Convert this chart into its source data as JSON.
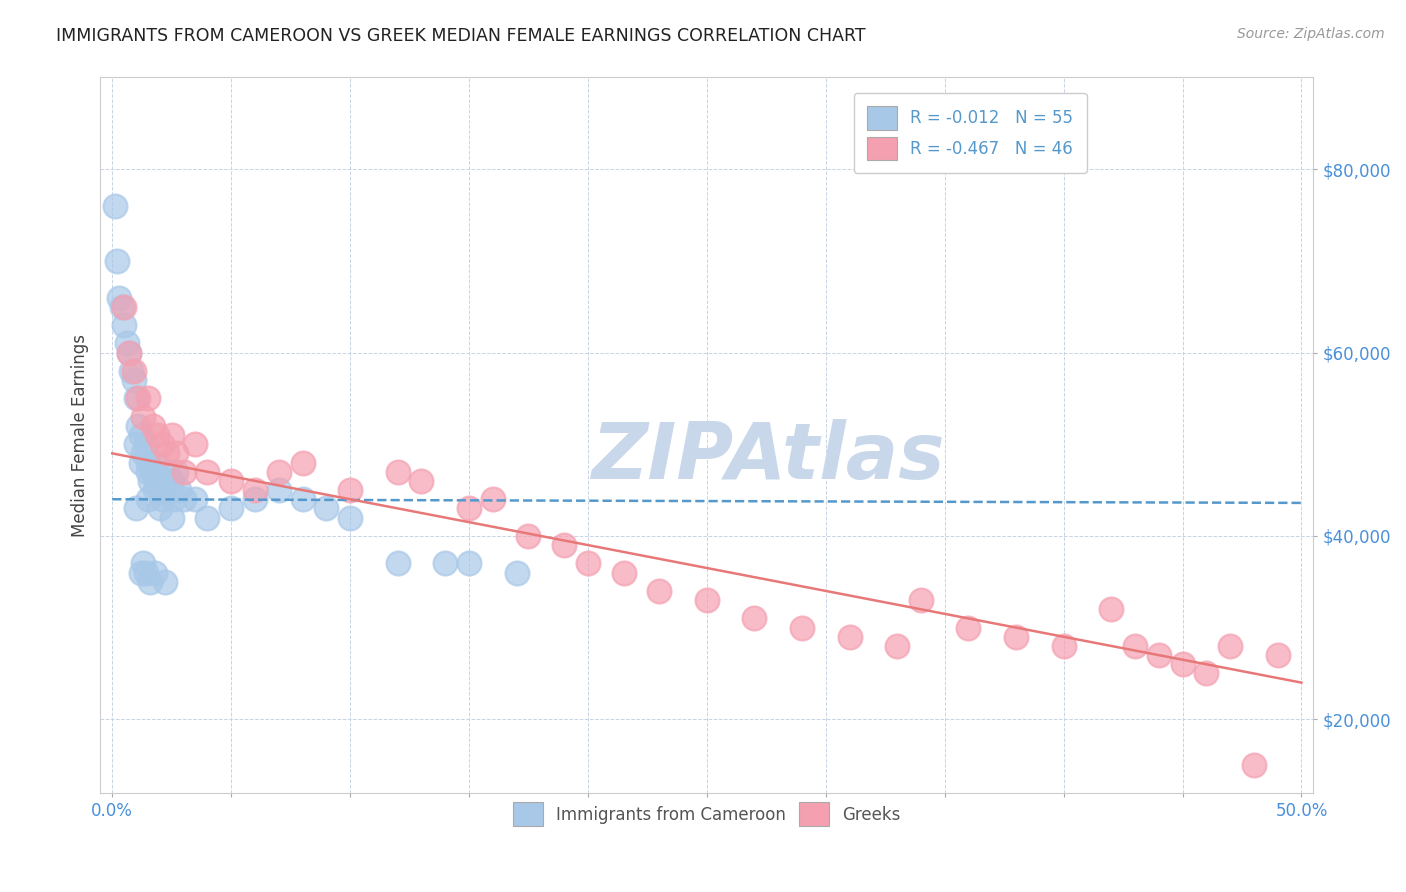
{
  "title": "IMMIGRANTS FROM CAMEROON VS GREEK MEDIAN FEMALE EARNINGS CORRELATION CHART",
  "source": "Source: ZipAtlas.com",
  "ylabel": "Median Female Earnings",
  "xlim": [
    -0.005,
    0.505
  ],
  "ylim": [
    12000,
    90000
  ],
  "xticks": [
    0.0,
    0.05,
    0.1,
    0.15,
    0.2,
    0.25,
    0.3,
    0.35,
    0.4,
    0.45,
    0.5
  ],
  "yticks": [
    20000,
    40000,
    60000,
    80000
  ],
  "ytick_labels": [
    "$20,000",
    "$40,000",
    "$60,000",
    "$80,000"
  ],
  "blue_R": -0.012,
  "blue_N": 55,
  "pink_R": -0.467,
  "pink_N": 46,
  "blue_color": "#a8c8e8",
  "pink_color": "#f4a0b0",
  "blue_line_color": "#5599cc",
  "pink_line_color": "#e87878",
  "watermark": "ZIPAtlas",
  "watermark_color": "#c8d8ea",
  "blue_scatter_x": [
    0.001,
    0.002,
    0.003,
    0.004,
    0.005,
    0.006,
    0.007,
    0.008,
    0.009,
    0.01,
    0.01,
    0.011,
    0.012,
    0.012,
    0.013,
    0.014,
    0.015,
    0.015,
    0.016,
    0.017,
    0.018,
    0.018,
    0.019,
    0.02,
    0.021,
    0.022,
    0.023,
    0.024,
    0.025,
    0.026,
    0.027,
    0.028,
    0.01,
    0.015,
    0.02,
    0.025,
    0.03,
    0.035,
    0.04,
    0.05,
    0.06,
    0.07,
    0.08,
    0.09,
    0.1,
    0.12,
    0.14,
    0.15,
    0.17,
    0.012,
    0.013,
    0.014,
    0.016,
    0.018,
    0.022
  ],
  "blue_scatter_y": [
    76000,
    70000,
    66000,
    65000,
    63000,
    61000,
    60000,
    58000,
    57000,
    55000,
    50000,
    52000,
    48000,
    51000,
    49000,
    50000,
    47000,
    48000,
    46000,
    47000,
    45000,
    48000,
    46000,
    45000,
    44000,
    46000,
    47000,
    45000,
    46000,
    44000,
    47000,
    45000,
    43000,
    44000,
    43000,
    42000,
    44000,
    44000,
    42000,
    43000,
    44000,
    45000,
    44000,
    43000,
    42000,
    37000,
    37000,
    37000,
    36000,
    36000,
    37000,
    36000,
    35000,
    36000,
    35000
  ],
  "pink_scatter_x": [
    0.005,
    0.007,
    0.009,
    0.011,
    0.013,
    0.015,
    0.017,
    0.019,
    0.021,
    0.023,
    0.025,
    0.027,
    0.03,
    0.035,
    0.04,
    0.05,
    0.06,
    0.07,
    0.08,
    0.1,
    0.12,
    0.13,
    0.15,
    0.16,
    0.175,
    0.19,
    0.2,
    0.215,
    0.23,
    0.25,
    0.27,
    0.29,
    0.31,
    0.33,
    0.34,
    0.36,
    0.38,
    0.4,
    0.42,
    0.43,
    0.44,
    0.45,
    0.46,
    0.47,
    0.48,
    0.49
  ],
  "pink_scatter_y": [
    65000,
    60000,
    58000,
    55000,
    53000,
    55000,
    52000,
    51000,
    50000,
    49000,
    51000,
    49000,
    47000,
    50000,
    47000,
    46000,
    45000,
    47000,
    48000,
    45000,
    47000,
    46000,
    43000,
    44000,
    40000,
    39000,
    37000,
    36000,
    34000,
    33000,
    31000,
    30000,
    29000,
    28000,
    33000,
    30000,
    29000,
    28000,
    32000,
    28000,
    27000,
    26000,
    25000,
    28000,
    15000,
    27000
  ],
  "blue_trend_x": [
    0.0,
    0.5
  ],
  "blue_trend_y": [
    44000,
    43600
  ],
  "pink_trend_x": [
    0.0,
    0.5
  ],
  "pink_trend_y": [
    49000,
    24000
  ],
  "background_color": "#ffffff",
  "grid_color": "#c8d4e4",
  "title_color": "#222222",
  "tick_label_color": "#4a90d9",
  "ylabel_color": "#444444"
}
